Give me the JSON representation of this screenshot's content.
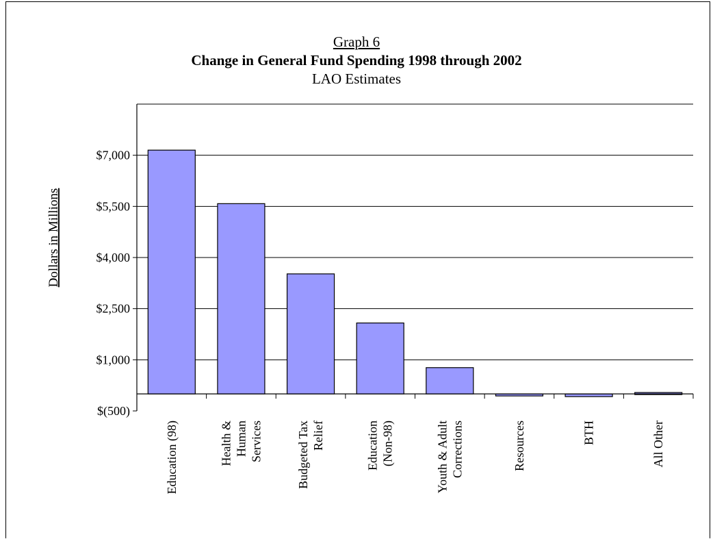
{
  "chart_data": {
    "type": "bar",
    "title_label": "Graph 6",
    "title": "Change in General Fund Spending 1998 through 2002",
    "subtitle": "LAO Estimates",
    "ylabel": "Dollars in Millions",
    "xlabel": "",
    "ylim": [
      -500,
      8500
    ],
    "yticks": [
      -500,
      1000,
      2500,
      4000,
      5500,
      7000
    ],
    "ytick_labels": [
      "$(500)",
      "$1,000",
      "$2,500",
      "$4,000",
      "$5,500",
      "$7,000"
    ],
    "categories": [
      [
        "Education (98)"
      ],
      [
        "Health &",
        "Human",
        "Services"
      ],
      [
        "Budgeted Tax",
        "Relief"
      ],
      [
        "Education",
        "(Non-98)"
      ],
      [
        "Youth & Adult",
        "Corrections"
      ],
      [
        "Resources"
      ],
      [
        "BTH"
      ],
      [
        "All Other"
      ]
    ],
    "values": [
      7150,
      5580,
      3520,
      2080,
      770,
      -60,
      -80,
      40
    ],
    "bar_color": "#9999ff",
    "grid": "horizontal"
  }
}
